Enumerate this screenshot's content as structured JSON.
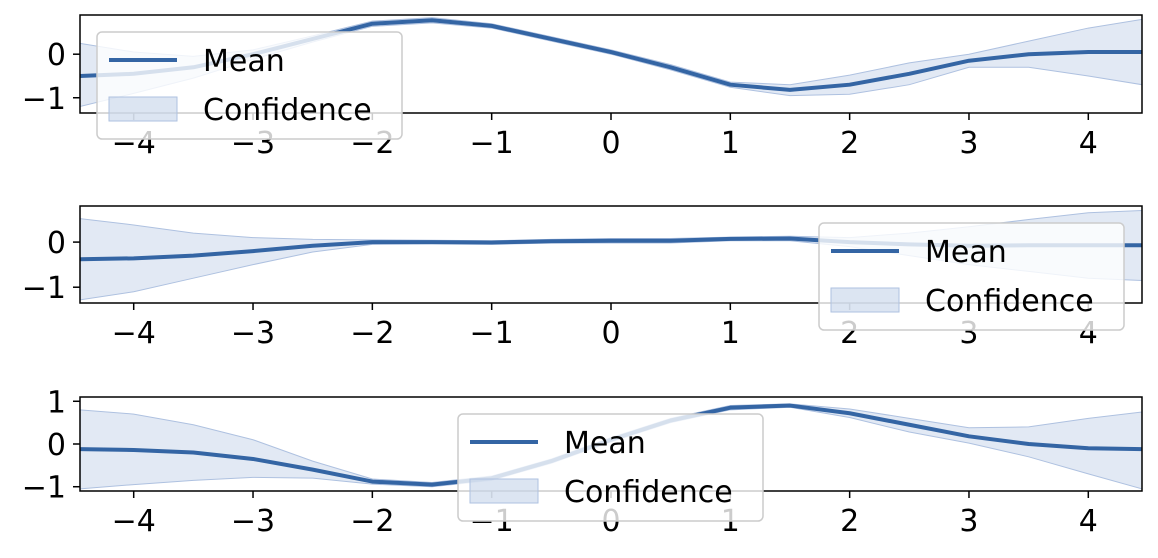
{
  "chart_data": [
    {
      "type": "line",
      "title": "",
      "xlabel": "",
      "ylabel": "",
      "xlim": [
        -4.45,
        4.45
      ],
      "ylim": [
        -1.35,
        0.9
      ],
      "xticks": [
        -4,
        -3,
        -2,
        -1,
        0,
        1,
        2,
        3,
        4
      ],
      "xtick_labels": [
        "−4",
        "−3",
        "−2",
        "−1",
        "0",
        "1",
        "2",
        "3",
        "4"
      ],
      "yticks": [
        0,
        -1
      ],
      "ytick_labels": [
        "0",
        "−1"
      ],
      "legend": {
        "placement": "upper-left",
        "entries": [
          "Mean",
          "Confidence"
        ]
      },
      "series": [
        {
          "name": "Mean",
          "x": [
            -4.45,
            -4.0,
            -3.5,
            -3.0,
            -2.5,
            -2.0,
            -1.5,
            -1.0,
            -0.5,
            0.0,
            0.5,
            1.0,
            1.5,
            2.0,
            2.5,
            3.0,
            3.5,
            4.0,
            4.45
          ],
          "y": [
            -0.5,
            -0.45,
            -0.3,
            0.0,
            0.35,
            0.7,
            0.78,
            0.65,
            0.35,
            0.05,
            -0.3,
            -0.7,
            -0.82,
            -0.7,
            -0.45,
            -0.15,
            0.0,
            0.05,
            0.05
          ],
          "lower": [
            -1.2,
            -0.9,
            -0.55,
            -0.12,
            0.28,
            0.64,
            0.72,
            0.6,
            0.3,
            0.0,
            -0.36,
            -0.76,
            -0.95,
            -0.92,
            -0.7,
            -0.3,
            -0.3,
            -0.5,
            -0.7
          ],
          "upper": [
            0.25,
            0.05,
            -0.05,
            0.1,
            0.42,
            0.76,
            0.84,
            0.7,
            0.4,
            0.1,
            -0.24,
            -0.64,
            -0.7,
            -0.48,
            -0.2,
            0.0,
            0.3,
            0.6,
            0.8
          ]
        }
      ]
    },
    {
      "type": "line",
      "title": "",
      "xlabel": "",
      "ylabel": "",
      "xlim": [
        -4.45,
        4.45
      ],
      "ylim": [
        -1.35,
        0.8
      ],
      "xticks": [
        -4,
        -3,
        -2,
        -1,
        0,
        1,
        2,
        3,
        4
      ],
      "xtick_labels": [
        "−4",
        "−3",
        "−2",
        "−1",
        "0",
        "1",
        "2",
        "3",
        "4"
      ],
      "yticks": [
        0,
        -1
      ],
      "ytick_labels": [
        "0",
        "−1"
      ],
      "legend": {
        "placement": "lower-right",
        "entries": [
          "Mean",
          "Confidence"
        ]
      },
      "series": [
        {
          "name": "Mean",
          "x": [
            -4.45,
            -4.0,
            -3.5,
            -3.0,
            -2.5,
            -2.0,
            -1.5,
            -1.0,
            -0.5,
            0.0,
            0.5,
            1.0,
            1.5,
            2.0,
            2.5,
            3.0,
            3.5,
            4.0,
            4.45
          ],
          "y": [
            -0.38,
            -0.36,
            -0.3,
            -0.2,
            -0.08,
            0.0,
            0.0,
            -0.01,
            0.02,
            0.03,
            0.03,
            0.07,
            0.08,
            0.0,
            -0.05,
            -0.08,
            -0.07,
            -0.07,
            -0.07
          ],
          "lower": [
            -1.28,
            -1.1,
            -0.8,
            -0.5,
            -0.22,
            -0.05,
            -0.04,
            -0.05,
            -0.02,
            -0.02,
            -0.02,
            0.03,
            0.03,
            -0.1,
            -0.3,
            -0.5,
            -0.65,
            -0.8,
            -0.85
          ],
          "upper": [
            0.52,
            0.38,
            0.2,
            0.1,
            0.06,
            0.05,
            0.04,
            0.03,
            0.06,
            0.08,
            0.08,
            0.11,
            0.13,
            0.1,
            0.2,
            0.34,
            0.5,
            0.65,
            0.7
          ]
        }
      ]
    },
    {
      "type": "line",
      "title": "",
      "xlabel": "",
      "ylabel": "",
      "xlim": [
        -4.45,
        4.45
      ],
      "ylim": [
        -1.1,
        1.1
      ],
      "xticks": [
        -4,
        -3,
        -2,
        -1,
        0,
        1,
        2,
        3,
        4
      ],
      "xtick_labels": [
        "−4",
        "−3",
        "−2",
        "−1",
        "0",
        "1",
        "2",
        "3",
        "4"
      ],
      "yticks": [
        1,
        0,
        -1
      ],
      "ytick_labels": [
        "1",
        "0",
        "−1"
      ],
      "legend": {
        "placement": "lower-center",
        "entries": [
          "Mean",
          "Confidence"
        ]
      },
      "series": [
        {
          "name": "Mean",
          "x": [
            -4.45,
            -4.0,
            -3.5,
            -3.0,
            -2.5,
            -2.0,
            -1.5,
            -1.0,
            -0.5,
            0.0,
            0.5,
            1.0,
            1.5,
            2.0,
            2.5,
            3.0,
            3.5,
            4.0,
            4.45
          ],
          "y": [
            -0.12,
            -0.14,
            -0.2,
            -0.35,
            -0.6,
            -0.88,
            -0.95,
            -0.8,
            -0.4,
            0.1,
            0.55,
            0.85,
            0.9,
            0.72,
            0.45,
            0.18,
            0.0,
            -0.1,
            -0.12
          ],
          "lower": [
            -1.05,
            -0.95,
            -0.85,
            -0.78,
            -0.8,
            -0.94,
            -1.0,
            -0.85,
            -0.45,
            0.05,
            0.5,
            0.8,
            0.86,
            0.62,
            0.28,
            0.02,
            -0.3,
            -0.7,
            -1.05
          ],
          "upper": [
            0.8,
            0.7,
            0.45,
            0.1,
            -0.4,
            -0.82,
            -0.9,
            -0.75,
            -0.35,
            0.15,
            0.6,
            0.9,
            0.94,
            0.82,
            0.6,
            0.38,
            0.4,
            0.6,
            0.75
          ]
        }
      ]
    }
  ],
  "colors": {
    "mean_line": "#3465a4",
    "band_fill": "#c5d3ea",
    "band_edge": "#aec1e0",
    "axis": "#000000",
    "legend_border": "#cccccc",
    "background": "#ffffff"
  }
}
